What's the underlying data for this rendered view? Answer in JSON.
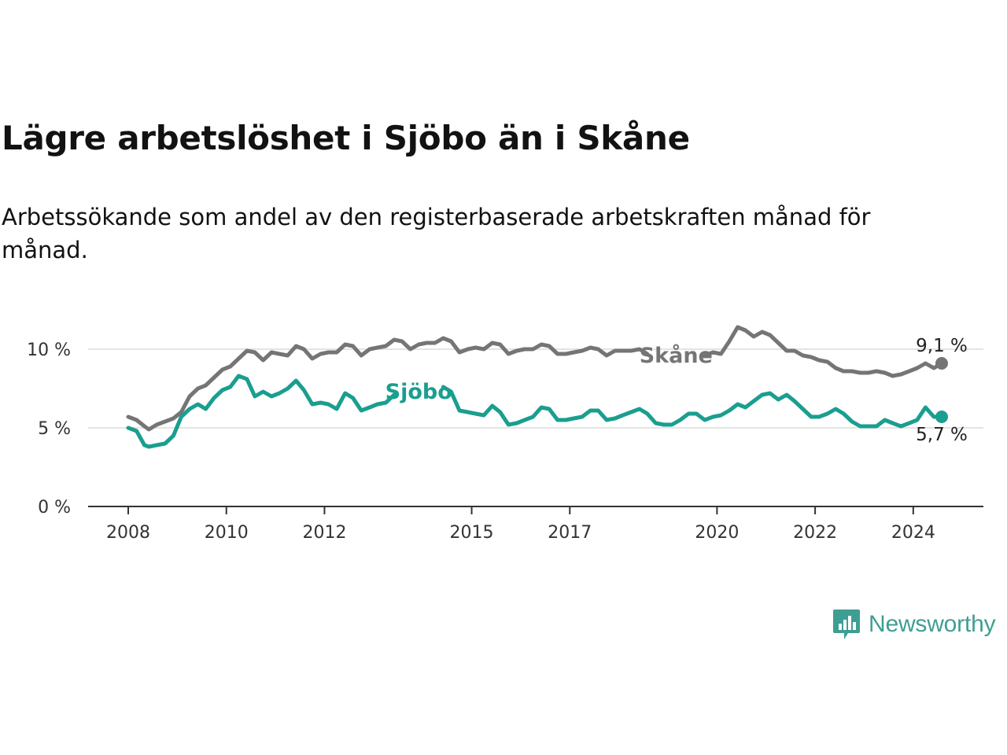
{
  "title": "Lägre arbetslöshet i Sjöbo än i Skåne",
  "subtitle": "Arbetssökande som andel av den registerbaserade arbetskraften månad för månad.",
  "brand": {
    "name": "Newsworthy",
    "color": "#3f9e93"
  },
  "chart_data": {
    "type": "line",
    "y_ticks": [
      {
        "value": 0,
        "label": "0 %"
      },
      {
        "value": 5,
        "label": "5 %"
      },
      {
        "value": 10,
        "label": "10 %"
      }
    ],
    "x_ticks": [
      {
        "value": 2008,
        "label": "2008"
      },
      {
        "value": 2010,
        "label": "2010"
      },
      {
        "value": 2012,
        "label": "2012"
      },
      {
        "value": 2015,
        "label": "2015"
      },
      {
        "value": 2017,
        "label": "2017"
      },
      {
        "value": 2020,
        "label": "2020"
      },
      {
        "value": 2022,
        "label": "2022"
      },
      {
        "value": 2024,
        "label": "2024"
      }
    ],
    "xlim": [
      2008,
      2024.58
    ],
    "ylim": [
      0,
      10
    ],
    "grid": "horizontal",
    "series": [
      {
        "name": "Skåne",
        "color": "#757575",
        "end_label": "9,1 %",
        "values": [
          [
            2008.0,
            5.7
          ],
          [
            2008.17,
            5.5
          ],
          [
            2008.33,
            5.1
          ],
          [
            2008.42,
            4.9
          ],
          [
            2008.58,
            5.2
          ],
          [
            2008.75,
            5.4
          ],
          [
            2008.92,
            5.6
          ],
          [
            2009.08,
            6.0
          ],
          [
            2009.25,
            7.0
          ],
          [
            2009.42,
            7.5
          ],
          [
            2009.58,
            7.7
          ],
          [
            2009.75,
            8.2
          ],
          [
            2009.92,
            8.7
          ],
          [
            2010.08,
            8.9
          ],
          [
            2010.25,
            9.4
          ],
          [
            2010.42,
            9.9
          ],
          [
            2010.58,
            9.8
          ],
          [
            2010.75,
            9.3
          ],
          [
            2010.92,
            9.8
          ],
          [
            2011.08,
            9.7
          ],
          [
            2011.25,
            9.6
          ],
          [
            2011.42,
            10.2
          ],
          [
            2011.58,
            10.0
          ],
          [
            2011.75,
            9.4
          ],
          [
            2011.92,
            9.7
          ],
          [
            2012.08,
            9.8
          ],
          [
            2012.25,
            9.8
          ],
          [
            2012.42,
            10.3
          ],
          [
            2012.58,
            10.2
          ],
          [
            2012.75,
            9.6
          ],
          [
            2012.92,
            10.0
          ],
          [
            2013.08,
            10.1
          ],
          [
            2013.25,
            10.2
          ],
          [
            2013.42,
            10.6
          ],
          [
            2013.58,
            10.5
          ],
          [
            2013.75,
            10.0
          ],
          [
            2013.92,
            10.3
          ],
          [
            2014.08,
            10.4
          ],
          [
            2014.25,
            10.4
          ],
          [
            2014.42,
            10.7
          ],
          [
            2014.58,
            10.5
          ],
          [
            2014.75,
            9.8
          ],
          [
            2014.92,
            10.0
          ],
          [
            2015.08,
            10.1
          ],
          [
            2015.25,
            10.0
          ],
          [
            2015.42,
            10.4
          ],
          [
            2015.58,
            10.3
          ],
          [
            2015.75,
            9.7
          ],
          [
            2015.92,
            9.9
          ],
          [
            2016.08,
            10.0
          ],
          [
            2016.25,
            10.0
          ],
          [
            2016.42,
            10.3
          ],
          [
            2016.58,
            10.2
          ],
          [
            2016.75,
            9.7
          ],
          [
            2016.92,
            9.7
          ],
          [
            2017.08,
            9.8
          ],
          [
            2017.25,
            9.9
          ],
          [
            2017.42,
            10.1
          ],
          [
            2017.58,
            10.0
          ],
          [
            2017.75,
            9.6
          ],
          [
            2017.92,
            9.9
          ],
          [
            2018.08,
            9.9
          ],
          [
            2018.25,
            9.9
          ],
          [
            2018.42,
            10.0
          ],
          [
            2018.58,
            9.7
          ],
          [
            2019.75,
            9.6
          ],
          [
            2019.92,
            9.8
          ],
          [
            2020.08,
            9.7
          ],
          [
            2020.25,
            10.5
          ],
          [
            2020.42,
            11.4
          ],
          [
            2020.58,
            11.2
          ],
          [
            2020.75,
            10.8
          ],
          [
            2020.92,
            11.1
          ],
          [
            2021.08,
            10.9
          ],
          [
            2021.25,
            10.4
          ],
          [
            2021.42,
            9.9
          ],
          [
            2021.58,
            9.9
          ],
          [
            2021.75,
            9.6
          ],
          [
            2021.92,
            9.5
          ],
          [
            2022.08,
            9.3
          ],
          [
            2022.25,
            9.2
          ],
          [
            2022.42,
            8.8
          ],
          [
            2022.58,
            8.6
          ],
          [
            2022.75,
            8.6
          ],
          [
            2022.92,
            8.5
          ],
          [
            2023.08,
            8.5
          ],
          [
            2023.25,
            8.6
          ],
          [
            2023.42,
            8.5
          ],
          [
            2023.58,
            8.3
          ],
          [
            2023.75,
            8.4
          ],
          [
            2023.92,
            8.6
          ],
          [
            2024.08,
            8.8
          ],
          [
            2024.25,
            9.1
          ],
          [
            2024.42,
            8.8
          ],
          [
            2024.58,
            9.1
          ]
        ]
      },
      {
        "name": "Sjöbo",
        "color": "#1a9e8f",
        "end_label": "5,7 %",
        "values": [
          [
            2008.0,
            5.0
          ],
          [
            2008.17,
            4.8
          ],
          [
            2008.33,
            3.9
          ],
          [
            2008.42,
            3.8
          ],
          [
            2008.58,
            3.9
          ],
          [
            2008.75,
            4.0
          ],
          [
            2008.92,
            4.5
          ],
          [
            2009.08,
            5.7
          ],
          [
            2009.25,
            6.2
          ],
          [
            2009.42,
            6.5
          ],
          [
            2009.58,
            6.2
          ],
          [
            2009.75,
            6.9
          ],
          [
            2009.92,
            7.4
          ],
          [
            2010.08,
            7.6
          ],
          [
            2010.25,
            8.3
          ],
          [
            2010.42,
            8.1
          ],
          [
            2010.58,
            7.0
          ],
          [
            2010.75,
            7.3
          ],
          [
            2010.92,
            7.0
          ],
          [
            2011.08,
            7.2
          ],
          [
            2011.25,
            7.5
          ],
          [
            2011.42,
            8.0
          ],
          [
            2011.58,
            7.4
          ],
          [
            2011.75,
            6.5
          ],
          [
            2011.92,
            6.6
          ],
          [
            2012.08,
            6.5
          ],
          [
            2012.25,
            6.2
          ],
          [
            2012.42,
            7.2
          ],
          [
            2012.58,
            6.9
          ],
          [
            2012.75,
            6.1
          ],
          [
            2012.92,
            6.3
          ],
          [
            2013.08,
            6.5
          ],
          [
            2013.25,
            6.6
          ],
          [
            2013.42,
            7.1
          ],
          [
            2014.42,
            7.6
          ],
          [
            2014.58,
            7.3
          ],
          [
            2014.75,
            6.1
          ],
          [
            2014.92,
            6.0
          ],
          [
            2015.08,
            5.9
          ],
          [
            2015.25,
            5.8
          ],
          [
            2015.42,
            6.4
          ],
          [
            2015.58,
            6.0
          ],
          [
            2015.75,
            5.2
          ],
          [
            2015.92,
            5.3
          ],
          [
            2016.08,
            5.5
          ],
          [
            2016.25,
            5.7
          ],
          [
            2016.42,
            6.3
          ],
          [
            2016.58,
            6.2
          ],
          [
            2016.75,
            5.5
          ],
          [
            2016.92,
            5.5
          ],
          [
            2017.08,
            5.6
          ],
          [
            2017.25,
            5.7
          ],
          [
            2017.42,
            6.1
          ],
          [
            2017.58,
            6.1
          ],
          [
            2017.75,
            5.5
          ],
          [
            2017.92,
            5.6
          ],
          [
            2018.08,
            5.8
          ],
          [
            2018.25,
            6.0
          ],
          [
            2018.42,
            6.2
          ],
          [
            2018.58,
            5.9
          ],
          [
            2018.75,
            5.3
          ],
          [
            2018.92,
            5.2
          ],
          [
            2019.08,
            5.2
          ],
          [
            2019.25,
            5.5
          ],
          [
            2019.42,
            5.9
          ],
          [
            2019.58,
            5.9
          ],
          [
            2019.75,
            5.5
          ],
          [
            2019.92,
            5.7
          ],
          [
            2020.08,
            5.8
          ],
          [
            2020.25,
            6.1
          ],
          [
            2020.42,
            6.5
          ],
          [
            2020.58,
            6.3
          ],
          [
            2020.75,
            6.7
          ],
          [
            2020.92,
            7.1
          ],
          [
            2021.08,
            7.2
          ],
          [
            2021.25,
            6.8
          ],
          [
            2021.42,
            7.1
          ],
          [
            2021.58,
            6.7
          ],
          [
            2021.75,
            6.2
          ],
          [
            2021.92,
            5.7
          ],
          [
            2022.08,
            5.7
          ],
          [
            2022.25,
            5.9
          ],
          [
            2022.42,
            6.2
          ],
          [
            2022.58,
            5.9
          ],
          [
            2022.75,
            5.4
          ],
          [
            2022.92,
            5.1
          ],
          [
            2023.08,
            5.1
          ],
          [
            2023.25,
            5.1
          ],
          [
            2023.42,
            5.5
          ],
          [
            2023.58,
            5.3
          ],
          [
            2023.75,
            5.1
          ],
          [
            2023.92,
            5.3
          ],
          [
            2024.08,
            5.5
          ],
          [
            2024.25,
            6.3
          ],
          [
            2024.42,
            5.7
          ],
          [
            2024.58,
            5.7
          ]
        ]
      }
    ]
  }
}
